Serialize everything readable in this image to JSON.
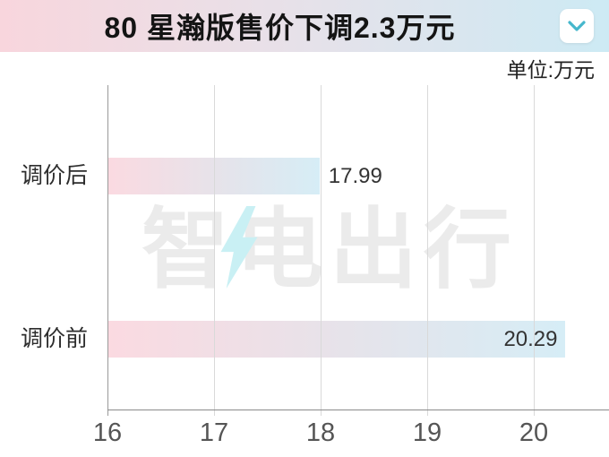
{
  "header": {
    "title": "80 星瀚版售价下调2.3万元"
  },
  "unit_label": "单位:万元",
  "watermark": {
    "text": "智电出行"
  },
  "colors": {
    "header_gradient": [
      "#f8d6dd",
      "#e7e1e9",
      "#cdeaf4"
    ],
    "bar_gradient": [
      "#fbdae1",
      "#e6e3ea",
      "#d6edf6"
    ],
    "chevron": "#45b7cc",
    "axis": "#8a8a8a",
    "gridline": "#d9d9d9",
    "watermark_text": "#ebebeb",
    "watermark_bolt": "#c9f0f4"
  },
  "chart_data": {
    "type": "bar",
    "orientation": "horizontal",
    "title": "80 星瀚版售价下调2.3万元",
    "unit": "万元",
    "categories": [
      "调价后",
      "调价前"
    ],
    "values": [
      17.99,
      20.29
    ],
    "value_labels": [
      "17.99",
      "20.29"
    ],
    "xlim": [
      16,
      20.7
    ],
    "xticks": [
      16,
      17,
      18,
      19,
      20
    ],
    "grid": true,
    "legend": false
  }
}
